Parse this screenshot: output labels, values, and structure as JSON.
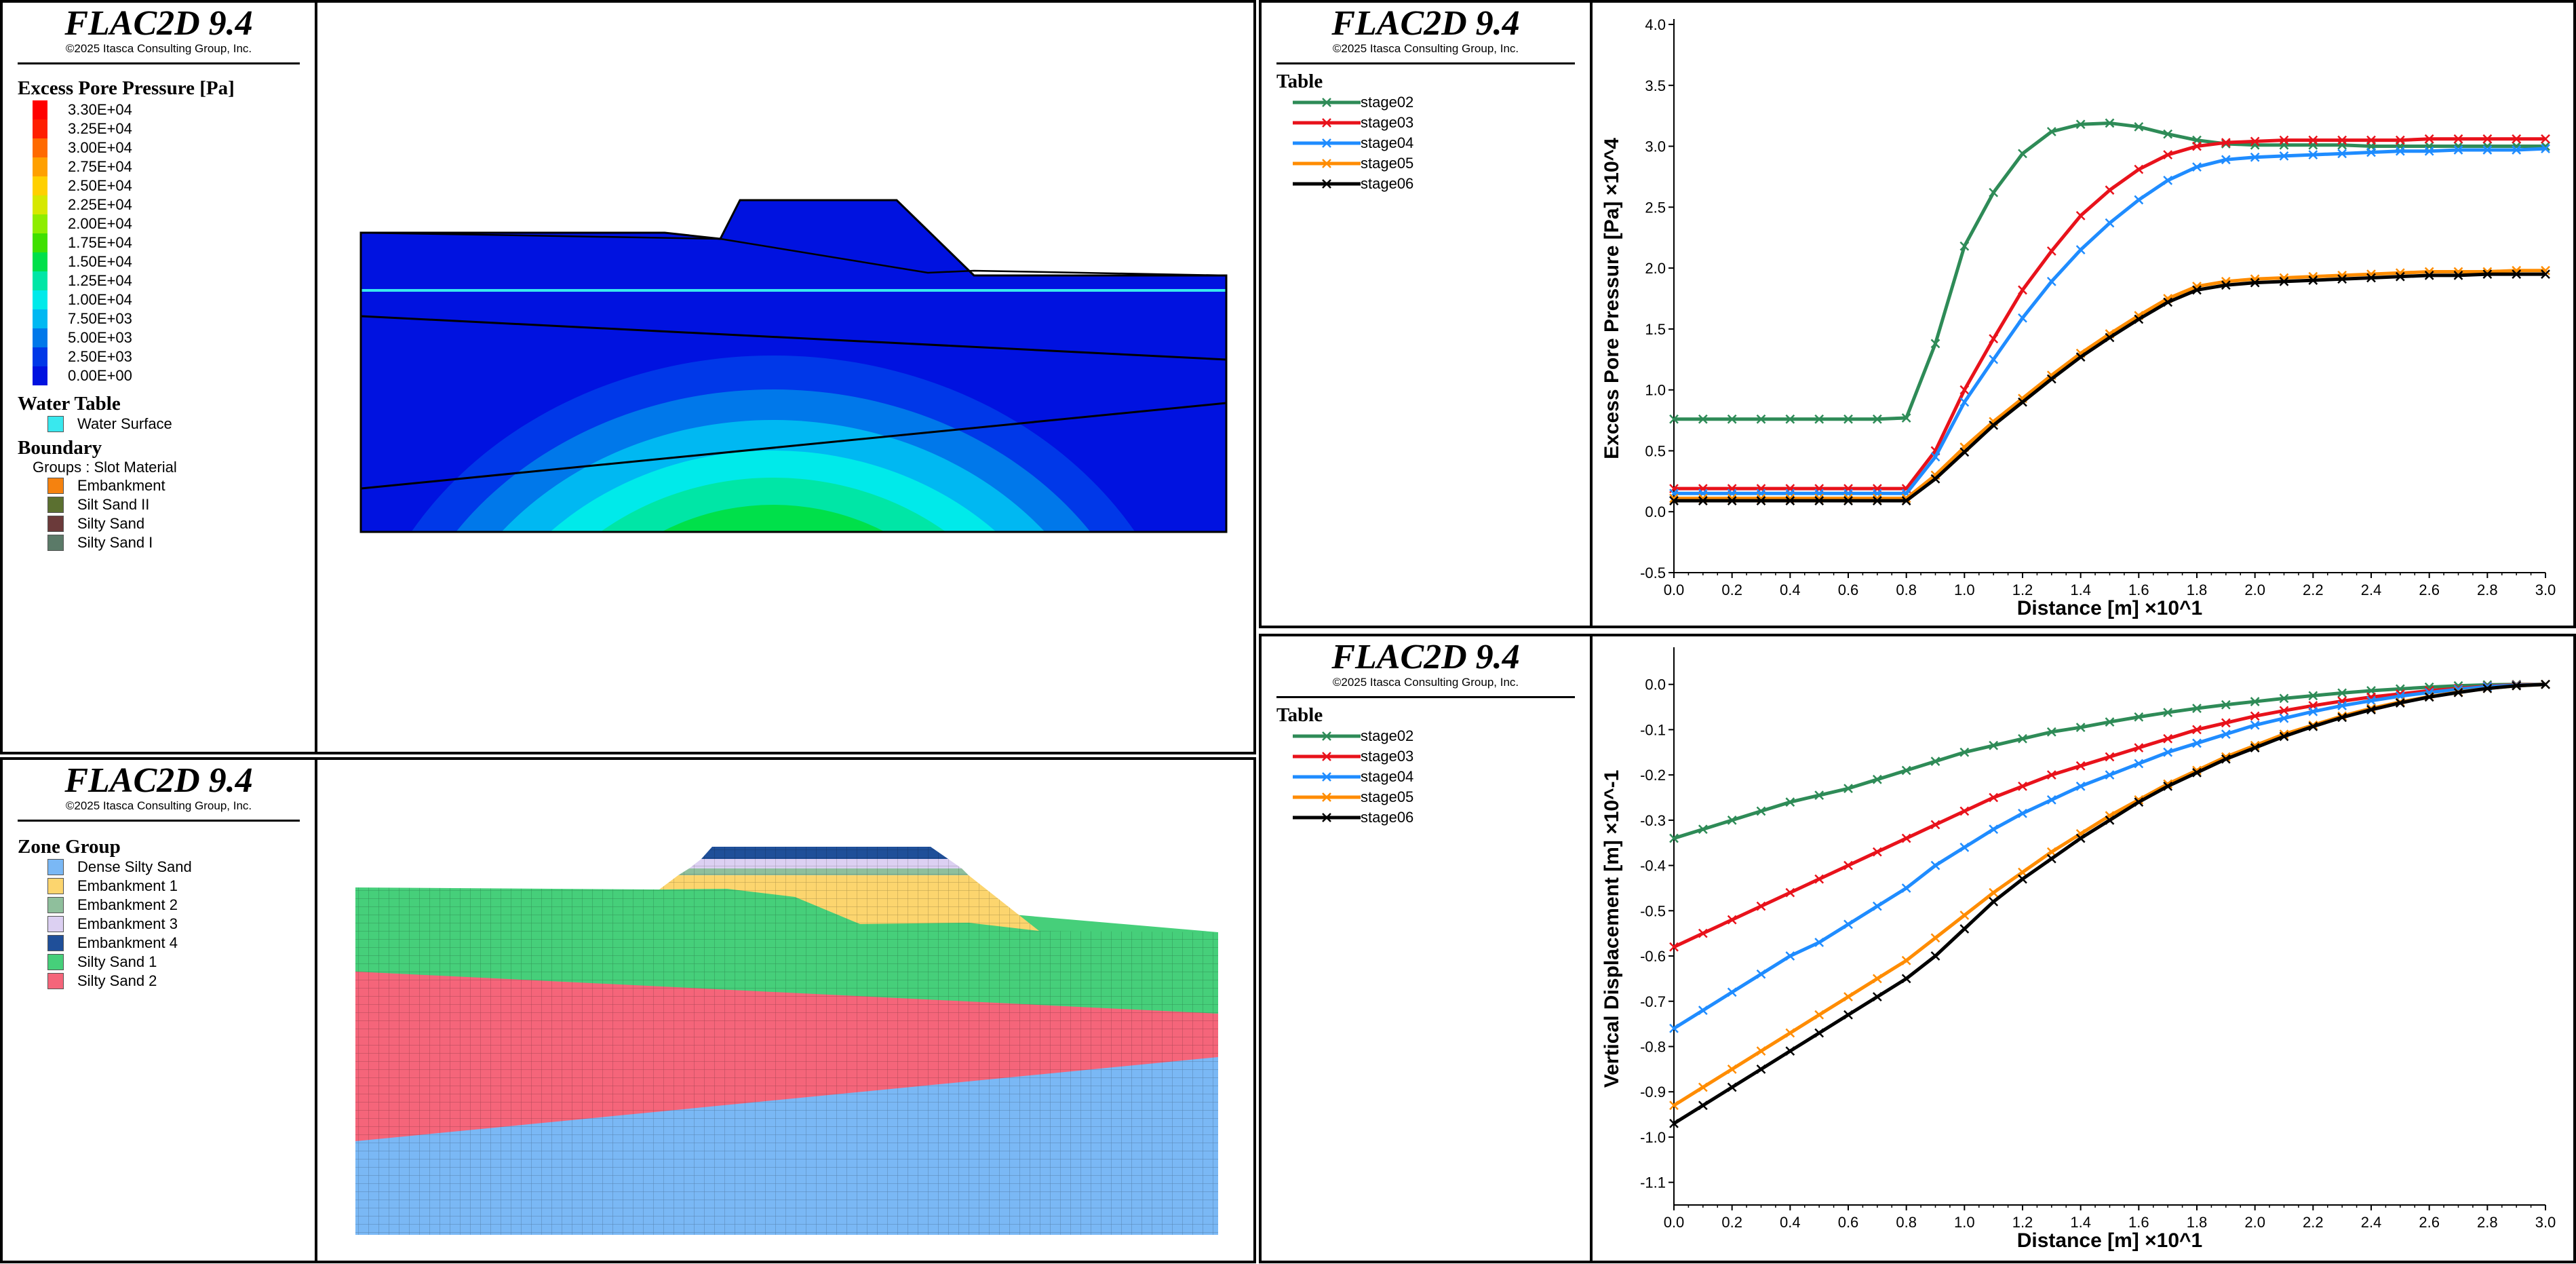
{
  "brand": {
    "title": "FLAC2D 9.4",
    "copyright": "©2025 Itasca Consulting Group, Inc."
  },
  "panel_pore": {
    "legend_title": "Excess Pore Pressure [Pa]",
    "colorbar": [
      {
        "label": "3.30E+04",
        "color": "#ff0000"
      },
      {
        "label": "3.25E+04",
        "color": "#ff1f00"
      },
      {
        "label": "3.00E+04",
        "color": "#ff6a00"
      },
      {
        "label": "2.75E+04",
        "color": "#ffa000"
      },
      {
        "label": "2.50E+04",
        "color": "#ffd000"
      },
      {
        "label": "2.25E+04",
        "color": "#d6e800"
      },
      {
        "label": "2.00E+04",
        "color": "#8eed00"
      },
      {
        "label": "1.75E+04",
        "color": "#3fe000"
      },
      {
        "label": "1.50E+04",
        "color": "#00e04a"
      },
      {
        "label": "1.25E+04",
        "color": "#00e6a6"
      },
      {
        "label": "1.00E+04",
        "color": "#00eaea"
      },
      {
        "label": "7.50E+03",
        "color": "#00b8f2"
      },
      {
        "label": "5.00E+03",
        "color": "#0078ea"
      },
      {
        "label": "2.50E+03",
        "color": "#0038e8"
      },
      {
        "label": "0.00E+00",
        "color": "#0012e0"
      }
    ],
    "water_table_title": "Water Table",
    "water_surface_label": "Water Surface",
    "water_surface_color": "#39e8ee",
    "boundary_title": "Boundary",
    "boundary_sub": "Groups : Slot Material",
    "boundary_items": [
      {
        "label": "Embankment",
        "color": "#f5820f"
      },
      {
        "label": "Silt Sand II",
        "color": "#5b7030"
      },
      {
        "label": "Silty Sand",
        "color": "#6b3a3a"
      },
      {
        "label": "Silty Sand I",
        "color": "#5b7a68"
      }
    ]
  },
  "panel_zones": {
    "legend_title": "Zone Group",
    "items": [
      {
        "label": "Dense Silty Sand",
        "color": "#7ab8f5"
      },
      {
        "label": "Embankment 1",
        "color": "#fcd56e"
      },
      {
        "label": "Embankment 2",
        "color": "#8fbf9c"
      },
      {
        "label": "Embankment 3",
        "color": "#dcd0f2"
      },
      {
        "label": "Embankment 4",
        "color": "#1f4f99"
      },
      {
        "label": "Silty Sand 1",
        "color": "#46cf7a"
      },
      {
        "label": "Silty Sand 2",
        "color": "#f5657a"
      }
    ]
  },
  "table_title": "Table",
  "series_styles": [
    {
      "name": "stage02",
      "color": "#2e8b57"
    },
    {
      "name": "stage03",
      "color": "#e8121b"
    },
    {
      "name": "stage04",
      "color": "#1f8cff"
    },
    {
      "name": "stage05",
      "color": "#ff8c00"
    },
    {
      "name": "stage06",
      "color": "#000000"
    }
  ],
  "chart_data": [
    {
      "type": "line",
      "xlabel": "Distance [m] ×10^1",
      "ylabel": "Excess Pore Pressure [Pa] ×10^4",
      "xlim": [
        0,
        3.0
      ],
      "ylim": [
        -0.5,
        4.0
      ],
      "xticks": [
        "0.0",
        "0.2",
        "0.4",
        "0.6",
        "0.8",
        "1.0",
        "1.2",
        "1.4",
        "1.6",
        "1.8",
        "2.0",
        "2.2",
        "2.4",
        "2.6",
        "2.8",
        "3.0"
      ],
      "yticks": [
        "-0.5",
        "0.0",
        "0.5",
        "1.0",
        "1.5",
        "2.0",
        "2.5",
        "3.0",
        "3.5",
        "4.0"
      ],
      "x": [
        0.0,
        0.1,
        0.2,
        0.3,
        0.4,
        0.5,
        0.6,
        0.7,
        0.8,
        0.9,
        1.0,
        1.1,
        1.2,
        1.3,
        1.4,
        1.5,
        1.6,
        1.7,
        1.8,
        1.9,
        2.0,
        2.1,
        2.2,
        2.3,
        2.4,
        2.5,
        2.6,
        2.7,
        2.8,
        2.9,
        3.0
      ],
      "series": [
        {
          "name": "stage02",
          "values": [
            0.76,
            0.76,
            0.76,
            0.76,
            0.76,
            0.76,
            0.76,
            0.76,
            0.77,
            1.38,
            2.18,
            2.62,
            2.94,
            3.12,
            3.18,
            3.19,
            3.16,
            3.1,
            3.05,
            3.02,
            3.01,
            3.01,
            3.01,
            3.01,
            3.0,
            3.0,
            3.0,
            3.0,
            3.0,
            3.0,
            3.0
          ]
        },
        {
          "name": "stage03",
          "values": [
            0.19,
            0.19,
            0.19,
            0.19,
            0.19,
            0.19,
            0.19,
            0.19,
            0.19,
            0.5,
            1.0,
            1.42,
            1.82,
            2.14,
            2.43,
            2.64,
            2.81,
            2.93,
            3.0,
            3.03,
            3.04,
            3.05,
            3.05,
            3.05,
            3.05,
            3.05,
            3.06,
            3.06,
            3.06,
            3.06,
            3.06
          ]
        },
        {
          "name": "stage04",
          "values": [
            0.15,
            0.15,
            0.15,
            0.15,
            0.15,
            0.15,
            0.15,
            0.15,
            0.15,
            0.45,
            0.9,
            1.25,
            1.59,
            1.89,
            2.15,
            2.37,
            2.56,
            2.72,
            2.83,
            2.89,
            2.91,
            2.92,
            2.93,
            2.94,
            2.95,
            2.96,
            2.96,
            2.97,
            2.97,
            2.97,
            2.98
          ]
        },
        {
          "name": "stage05",
          "values": [
            0.11,
            0.11,
            0.11,
            0.11,
            0.11,
            0.11,
            0.11,
            0.11,
            0.11,
            0.3,
            0.53,
            0.74,
            0.93,
            1.12,
            1.3,
            1.46,
            1.61,
            1.75,
            1.85,
            1.89,
            1.91,
            1.92,
            1.93,
            1.94,
            1.95,
            1.96,
            1.97,
            1.97,
            1.97,
            1.98,
            1.98
          ]
        },
        {
          "name": "stage06",
          "values": [
            0.09,
            0.09,
            0.09,
            0.09,
            0.09,
            0.09,
            0.09,
            0.09,
            0.09,
            0.27,
            0.49,
            0.71,
            0.9,
            1.09,
            1.27,
            1.43,
            1.58,
            1.72,
            1.82,
            1.86,
            1.88,
            1.89,
            1.9,
            1.91,
            1.92,
            1.93,
            1.94,
            1.94,
            1.95,
            1.95,
            1.95
          ]
        }
      ]
    },
    {
      "type": "line",
      "xlabel": "Distance [m] ×10^1",
      "ylabel": "Vertical Displacement [m] ×10^-1",
      "xlim": [
        0,
        3.0
      ],
      "ylim": [
        -1.15,
        0.07
      ],
      "xticks": [
        "0.0",
        "0.2",
        "0.4",
        "0.6",
        "0.8",
        "1.0",
        "1.2",
        "1.4",
        "1.6",
        "1.8",
        "2.0",
        "2.2",
        "2.4",
        "2.6",
        "2.8",
        "3.0"
      ],
      "yticks": [
        "0.0",
        "-0.1",
        "-0.2",
        "-0.3",
        "-0.4",
        "-0.5",
        "-0.6",
        "-0.7",
        "-0.8",
        "-0.9",
        "-1.0",
        "-1.1"
      ],
      "x": [
        0.0,
        0.1,
        0.2,
        0.3,
        0.4,
        0.5,
        0.6,
        0.7,
        0.8,
        0.9,
        1.0,
        1.1,
        1.2,
        1.3,
        1.4,
        1.5,
        1.6,
        1.7,
        1.8,
        1.9,
        2.0,
        2.1,
        2.2,
        2.3,
        2.4,
        2.5,
        2.6,
        2.7,
        2.8,
        2.9,
        3.0
      ],
      "series": [
        {
          "name": "stage02",
          "values": [
            -0.34,
            -0.32,
            -0.3,
            -0.28,
            -0.26,
            -0.245,
            -0.23,
            -0.21,
            -0.19,
            -0.17,
            -0.15,
            -0.135,
            -0.12,
            -0.105,
            -0.095,
            -0.083,
            -0.072,
            -0.062,
            -0.053,
            -0.045,
            -0.038,
            -0.031,
            -0.025,
            -0.019,
            -0.014,
            -0.01,
            -0.006,
            -0.003,
            -0.001,
            0.0,
            0.0
          ]
        },
        {
          "name": "stage03",
          "values": [
            -0.58,
            -0.55,
            -0.52,
            -0.49,
            -0.46,
            -0.43,
            -0.4,
            -0.37,
            -0.34,
            -0.31,
            -0.28,
            -0.25,
            -0.225,
            -0.2,
            -0.18,
            -0.16,
            -0.14,
            -0.12,
            -0.1,
            -0.085,
            -0.07,
            -0.058,
            -0.047,
            -0.037,
            -0.028,
            -0.021,
            -0.014,
            -0.009,
            -0.004,
            -0.001,
            0.0
          ]
        },
        {
          "name": "stage04",
          "values": [
            -0.76,
            -0.72,
            -0.68,
            -0.64,
            -0.6,
            -0.57,
            -0.53,
            -0.49,
            -0.45,
            -0.4,
            -0.36,
            -0.32,
            -0.285,
            -0.255,
            -0.225,
            -0.2,
            -0.175,
            -0.15,
            -0.13,
            -0.11,
            -0.09,
            -0.075,
            -0.06,
            -0.047,
            -0.036,
            -0.026,
            -0.018,
            -0.011,
            -0.005,
            -0.002,
            0.0
          ]
        },
        {
          "name": "stage05",
          "values": [
            -0.93,
            -0.89,
            -0.85,
            -0.81,
            -0.77,
            -0.73,
            -0.69,
            -0.65,
            -0.61,
            -0.56,
            -0.51,
            -0.46,
            -0.415,
            -0.37,
            -0.33,
            -0.29,
            -0.255,
            -0.22,
            -0.19,
            -0.16,
            -0.135,
            -0.11,
            -0.09,
            -0.07,
            -0.053,
            -0.039,
            -0.027,
            -0.017,
            -0.009,
            -0.003,
            0.0
          ]
        },
        {
          "name": "stage06",
          "values": [
            -0.97,
            -0.93,
            -0.89,
            -0.85,
            -0.81,
            -0.77,
            -0.73,
            -0.69,
            -0.65,
            -0.6,
            -0.54,
            -0.48,
            -0.43,
            -0.385,
            -0.34,
            -0.3,
            -0.26,
            -0.225,
            -0.195,
            -0.165,
            -0.14,
            -0.115,
            -0.093,
            -0.073,
            -0.056,
            -0.041,
            -0.028,
            -0.018,
            -0.009,
            -0.003,
            0.0
          ]
        }
      ]
    }
  ]
}
